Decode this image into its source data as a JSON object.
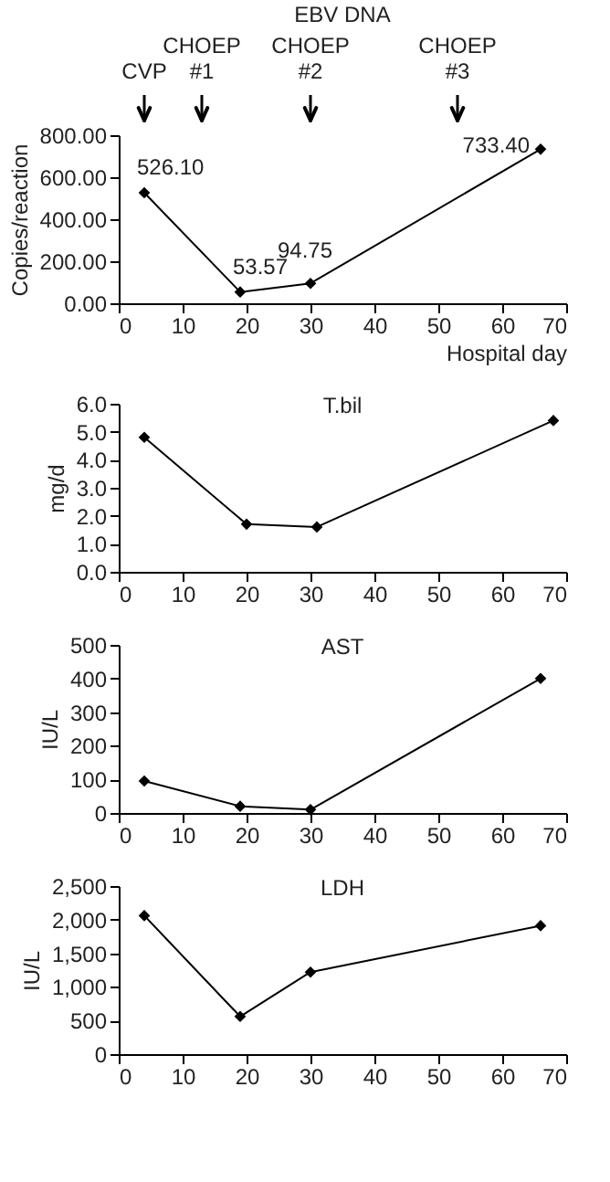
{
  "chart_data": [
    {
      "type": "line",
      "title": "EBV DNA",
      "xlabel": "Hospital day",
      "ylabel": "Copies/reaction",
      "x": [
        4,
        19,
        30,
        66
      ],
      "values": [
        526.1,
        53.57,
        94.75,
        733.4
      ],
      "value_labels": [
        "526.10",
        "53.57",
        "94.75",
        "733.40"
      ],
      "color": "#000000",
      "marker": "diamond",
      "line_style": "solid",
      "xlim": [
        0,
        70
      ],
      "xticks": [
        0,
        10,
        20,
        30,
        40,
        50,
        60,
        70
      ],
      "ylim": [
        0,
        800
      ],
      "yticks": [
        {
          "value": 0,
          "label": "0.00"
        },
        {
          "value": 200,
          "label": "200.00"
        },
        {
          "value": 400,
          "label": "400.00"
        },
        {
          "value": 600,
          "label": "600.00"
        },
        {
          "value": 800,
          "label": "800.00"
        }
      ],
      "grid": false,
      "ref_lines": [
        {
          "axis": "x",
          "value": 4,
          "label": "CVP"
        },
        {
          "axis": "x",
          "value": 13,
          "label": "CHOEP #1"
        },
        {
          "axis": "x",
          "value": 30,
          "label": "CHOEP #2"
        },
        {
          "axis": "x",
          "value": 53,
          "label": "CHOEP #3"
        }
      ]
    },
    {
      "type": "line",
      "title": "T.bil",
      "ylabel": "mg/d",
      "x": [
        4,
        20,
        31,
        68
      ],
      "values": [
        4.8,
        1.7,
        1.6,
        5.4
      ],
      "color": "#000000",
      "marker": "diamond",
      "line_style": "solid",
      "xlim": [
        0,
        70
      ],
      "xticks": [
        0,
        10,
        20,
        30,
        40,
        50,
        60,
        70
      ],
      "ylim": [
        0,
        6
      ],
      "yticks": [
        {
          "value": 0,
          "label": "0.0"
        },
        {
          "value": 1,
          "label": "1.0"
        },
        {
          "value": 2,
          "label": "2.0"
        },
        {
          "value": 3,
          "label": "3.0"
        },
        {
          "value": 4,
          "label": "4.0"
        },
        {
          "value": 5,
          "label": "5.0"
        },
        {
          "value": 6,
          "label": "6.0"
        }
      ],
      "grid": false
    },
    {
      "type": "line",
      "title": "AST",
      "ylabel": "IU/L",
      "x": [
        4,
        19,
        30,
        66
      ],
      "values": [
        95,
        20,
        10,
        400
      ],
      "color": "#000000",
      "marker": "diamond",
      "line_style": "solid",
      "xlim": [
        0,
        70
      ],
      "xticks": [
        0,
        10,
        20,
        30,
        40,
        50,
        60,
        70
      ],
      "ylim": [
        0,
        500
      ],
      "yticks": [
        0,
        100,
        200,
        300,
        400,
        500
      ],
      "grid": false
    },
    {
      "type": "line",
      "title": "LDH",
      "ylabel": "IU/L",
      "x": [
        4,
        19,
        30,
        66
      ],
      "values": [
        2060,
        560,
        1220,
        1910
      ],
      "color": "#000000",
      "marker": "diamond",
      "line_style": "solid",
      "xlim": [
        0,
        70
      ],
      "xticks": [
        0,
        10,
        20,
        30,
        40,
        50,
        60,
        70
      ],
      "ylim": [
        0,
        2500
      ],
      "yticks": [
        0,
        500,
        {
          "value": 1000,
          "label": "1,000"
        },
        {
          "value": 1500,
          "label": "1,500"
        },
        {
          "value": 2000,
          "label": "2,000"
        },
        {
          "value": 2500,
          "label": "2,500"
        }
      ],
      "grid": false
    }
  ]
}
